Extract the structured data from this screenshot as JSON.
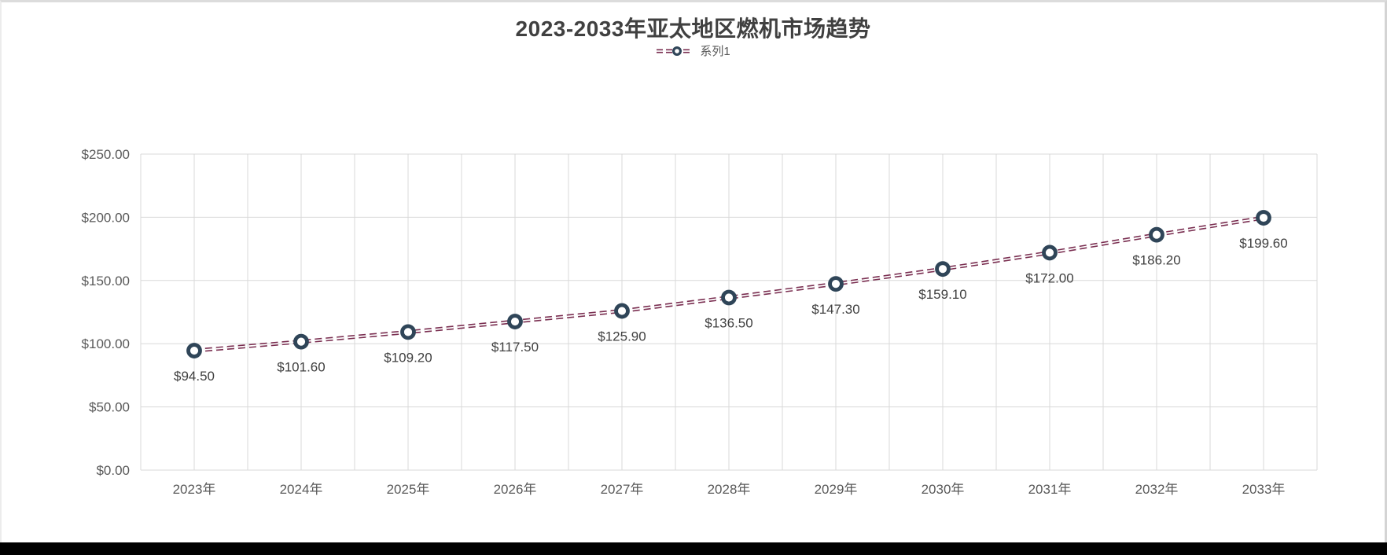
{
  "window": {
    "background": "#ffffff",
    "border_color": "#d8d8d8",
    "bottom_bar_color": "#000000"
  },
  "chart_data": {
    "type": "line",
    "title": "2023-2033年亚太地区燃机市场趋势",
    "legend_position": "top",
    "categories": [
      "2023年",
      "2024年",
      "2025年",
      "2026年",
      "2027年",
      "2028年",
      "2029年",
      "2030年",
      "2031年",
      "2032年",
      "2033年"
    ],
    "series": [
      {
        "name": "系列1",
        "values": [
          94.5,
          101.6,
          109.2,
          117.5,
          125.9,
          136.5,
          147.3,
          159.1,
          172.0,
          186.2,
          199.6
        ],
        "data_labels": [
          "$94.50",
          "$101.60",
          "$109.20",
          "$117.50",
          "$125.90",
          "$136.50",
          "$147.30",
          "$159.10",
          "$172.00",
          "$186.20",
          "$199.60"
        ],
        "line_color": "#7a2f51",
        "line_style": "double-dash",
        "marker": "open-circle",
        "marker_ring_color": "#2f4558",
        "marker_fill": "#ffffff"
      }
    ],
    "y_axis": {
      "min": 0,
      "max": 250,
      "step": 50,
      "ticks": [
        {
          "value": 0,
          "label": "$0.00"
        },
        {
          "value": 50,
          "label": "$50.00"
        },
        {
          "value": 100,
          "label": "$100.00"
        },
        {
          "value": 150,
          "label": "$150.00"
        },
        {
          "value": 200,
          "label": "$200.00"
        },
        {
          "value": 250,
          "label": "$250.00"
        }
      ]
    },
    "grid": {
      "show": true,
      "color": "#d9d9d9",
      "vertical_lines_per_category": 2
    },
    "text_colors": {
      "title": "#404040",
      "axis": "#595959",
      "data_label": "#404040",
      "legend": "#595959"
    }
  }
}
